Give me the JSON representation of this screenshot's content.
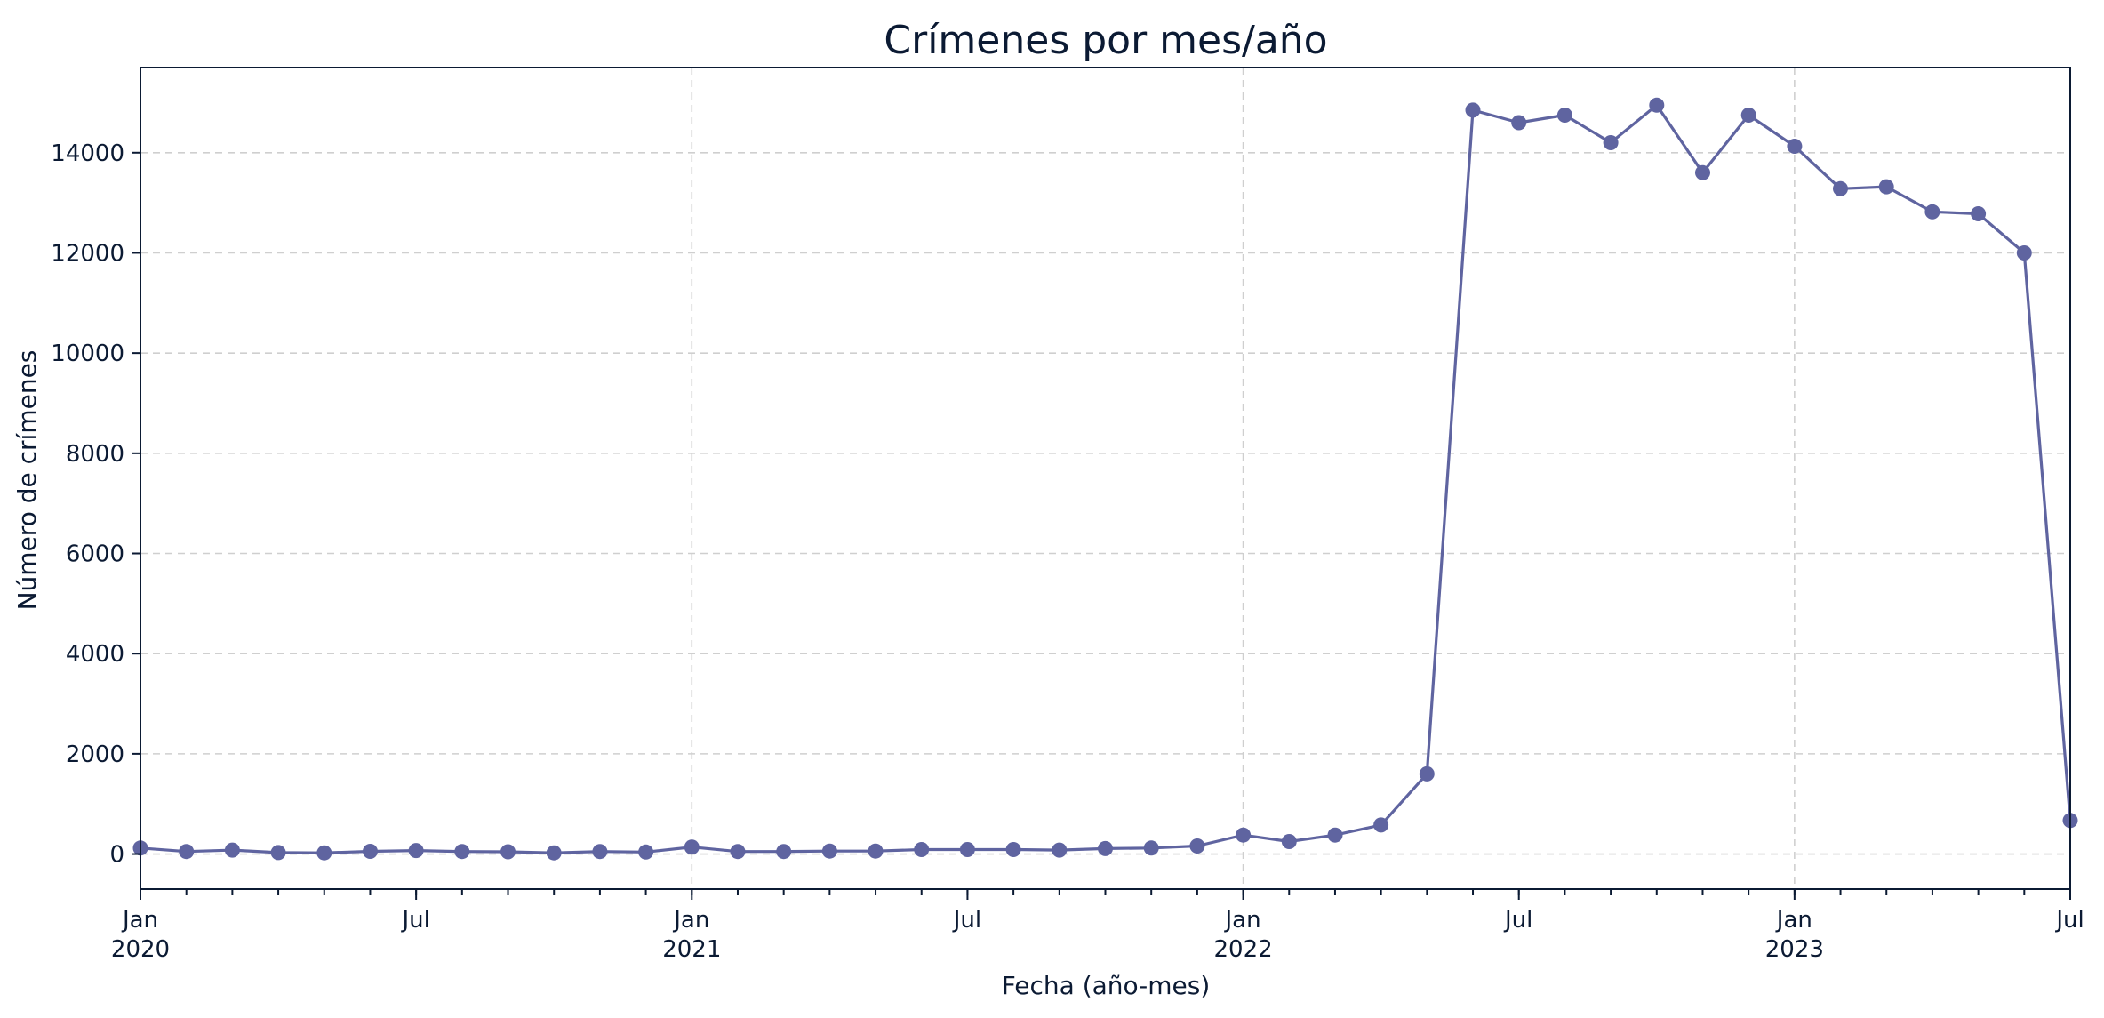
{
  "chart_data": {
    "type": "line",
    "title": "Crímenes por mes/año",
    "xlabel": "Fecha (año-mes)",
    "ylabel": "Número de crímenes",
    "x_range": [
      "2020-01",
      "2023-07"
    ],
    "ylim": [
      -700,
      15700
    ],
    "grid": true,
    "marker": "circle",
    "color": "#5f64a0",
    "yticks": [
      0,
      2000,
      4000,
      6000,
      8000,
      10000,
      12000,
      14000
    ],
    "xticks": [
      {
        "month": 0,
        "label": "Jan",
        "sublabel": "2020"
      },
      {
        "month": 6,
        "label": "Jul",
        "sublabel": ""
      },
      {
        "month": 12,
        "label": "Jan",
        "sublabel": "2021"
      },
      {
        "month": 18,
        "label": "Jul",
        "sublabel": ""
      },
      {
        "month": 24,
        "label": "Jan",
        "sublabel": "2022"
      },
      {
        "month": 30,
        "label": "Jul",
        "sublabel": ""
      },
      {
        "month": 36,
        "label": "Jan",
        "sublabel": "2023"
      },
      {
        "month": 42,
        "label": "Jul",
        "sublabel": ""
      }
    ],
    "series": [
      {
        "x": [
          "2020-01",
          "2020-02",
          "2020-03",
          "2020-04",
          "2020-05",
          "2020-06",
          "2020-07",
          "2020-08",
          "2020-09",
          "2020-10",
          "2020-11",
          "2020-12",
          "2021-01",
          "2021-02",
          "2021-03",
          "2021-04",
          "2021-05",
          "2021-06",
          "2021-07",
          "2021-08",
          "2021-09",
          "2021-10",
          "2021-11",
          "2021-12",
          "2022-01",
          "2022-02",
          "2022-03",
          "2022-04",
          "2022-05",
          "2022-06",
          "2022-07",
          "2022-08",
          "2022-09",
          "2022-10",
          "2022-11",
          "2022-12",
          "2023-01",
          "2023-02",
          "2023-03",
          "2023-04",
          "2023-05",
          "2023-06",
          "2023-07"
        ],
        "values": [
          120,
          50,
          80,
          30,
          25,
          55,
          70,
          50,
          45,
          25,
          50,
          40,
          140,
          50,
          50,
          60,
          60,
          90,
          90,
          90,
          80,
          110,
          120,
          160,
          380,
          250,
          380,
          580,
          1600,
          14850,
          14600,
          14750,
          14200,
          14950,
          13600,
          14750,
          14130,
          13280,
          13320,
          12820,
          12780,
          12000,
          670
        ]
      }
    ]
  }
}
